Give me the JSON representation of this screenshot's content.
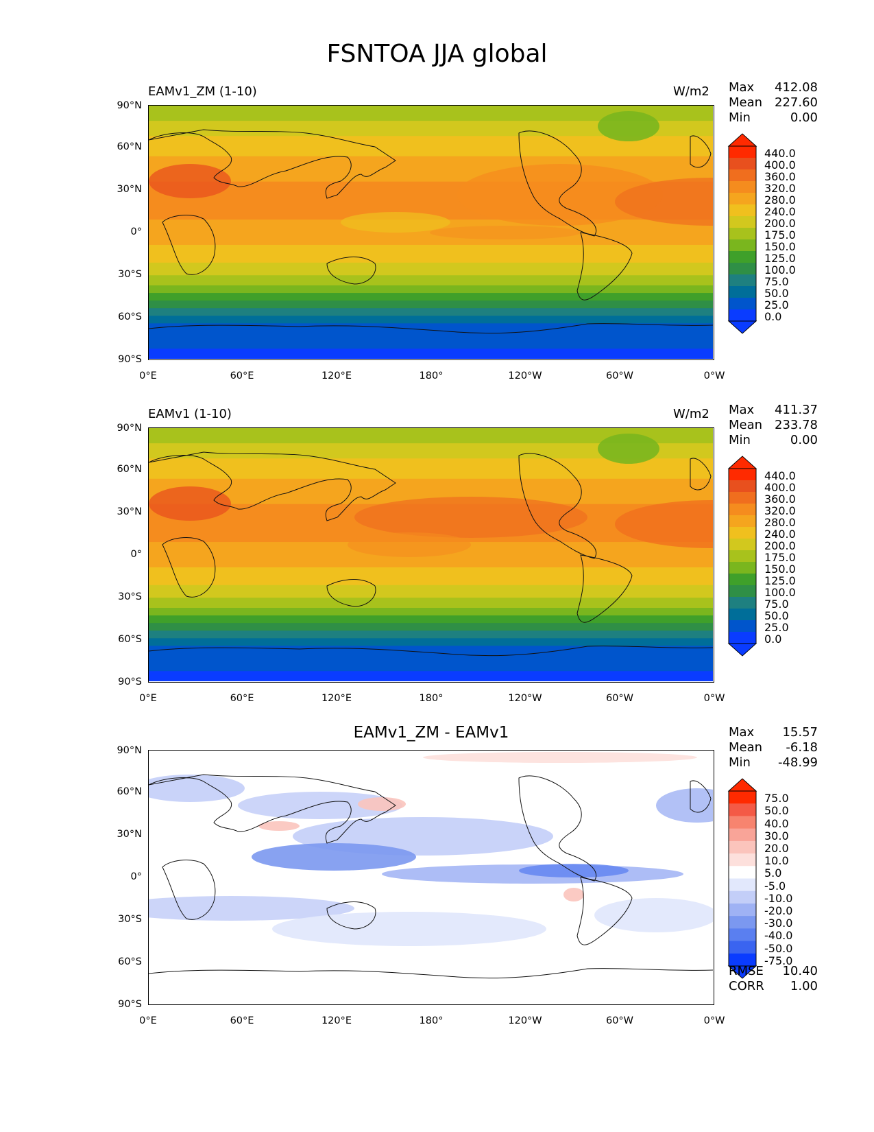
{
  "title": "FSNTOA JJA global",
  "lat_ticks": [
    "90°N",
    "60°N",
    "30°N",
    "0°",
    "30°S",
    "60°S",
    "90°S"
  ],
  "lon_ticks": [
    "0°E",
    "60°E",
    "120°E",
    "180°",
    "120°W",
    "60°W",
    "0°W"
  ],
  "panels": [
    {
      "title_left": "EAMv1_ZM (1-10)",
      "units": "W/m2",
      "stats": {
        "max_label": "Max",
        "max": "412.08",
        "mean_label": "Mean",
        "mean": "227.60",
        "min_label": "Min",
        "min": "0.00"
      },
      "colorbar": [
        "440.0",
        "400.0",
        "360.0",
        "320.0",
        "280.0",
        "240.0",
        "200.0",
        "175.0",
        "150.0",
        "125.0",
        "100.0",
        "75.0",
        "50.0",
        "25.0",
        "0.0"
      ]
    },
    {
      "title_left": "EAMv1 (1-10)",
      "units": "W/m2",
      "stats": {
        "max_label": "Max",
        "max": "411.37",
        "mean_label": "Mean",
        "mean": "233.78",
        "min_label": "Min",
        "min": "0.00"
      },
      "colorbar": [
        "440.0",
        "400.0",
        "360.0",
        "320.0",
        "280.0",
        "240.0",
        "200.0",
        "175.0",
        "150.0",
        "125.0",
        "100.0",
        "75.0",
        "50.0",
        "25.0",
        "0.0"
      ]
    },
    {
      "title_center": "EAMv1_ZM - EAMv1",
      "stats": {
        "max_label": "Max",
        "max": "15.57",
        "mean_label": "Mean",
        "mean": "-6.18",
        "min_label": "Min",
        "min": "-48.99"
      },
      "colorbar": [
        "75.0",
        "50.0",
        "40.0",
        "30.0",
        "20.0",
        "10.0",
        "5.0",
        "-5.0",
        "-10.0",
        "-20.0",
        "-30.0",
        "-40.0",
        "-50.0",
        "-75.0"
      ],
      "rmse_label": "RMSE",
      "rmse": "10.40",
      "corr_label": "CORR",
      "corr": "1.00"
    }
  ],
  "colors": {
    "abs_scale": [
      "#0a3cff",
      "#0055cc",
      "#006e99",
      "#1e8080",
      "#2f8f46",
      "#3fa02a",
      "#7ab61e",
      "#a8c21c",
      "#d2c81e",
      "#f0c01e",
      "#f5a51e",
      "#f58c1e",
      "#f06e1e",
      "#e8501e",
      "#ff2a00"
    ],
    "diff_scale": [
      "#0a3cff",
      "#3a64f0",
      "#5a7ff0",
      "#7b98f0",
      "#9fb2f4",
      "#c3cef8",
      "#e2e8fc",
      "#ffffff",
      "#fde0dc",
      "#fbc4bc",
      "#f9a498",
      "#f7846f",
      "#f45a46",
      "#ff2a00"
    ]
  }
}
